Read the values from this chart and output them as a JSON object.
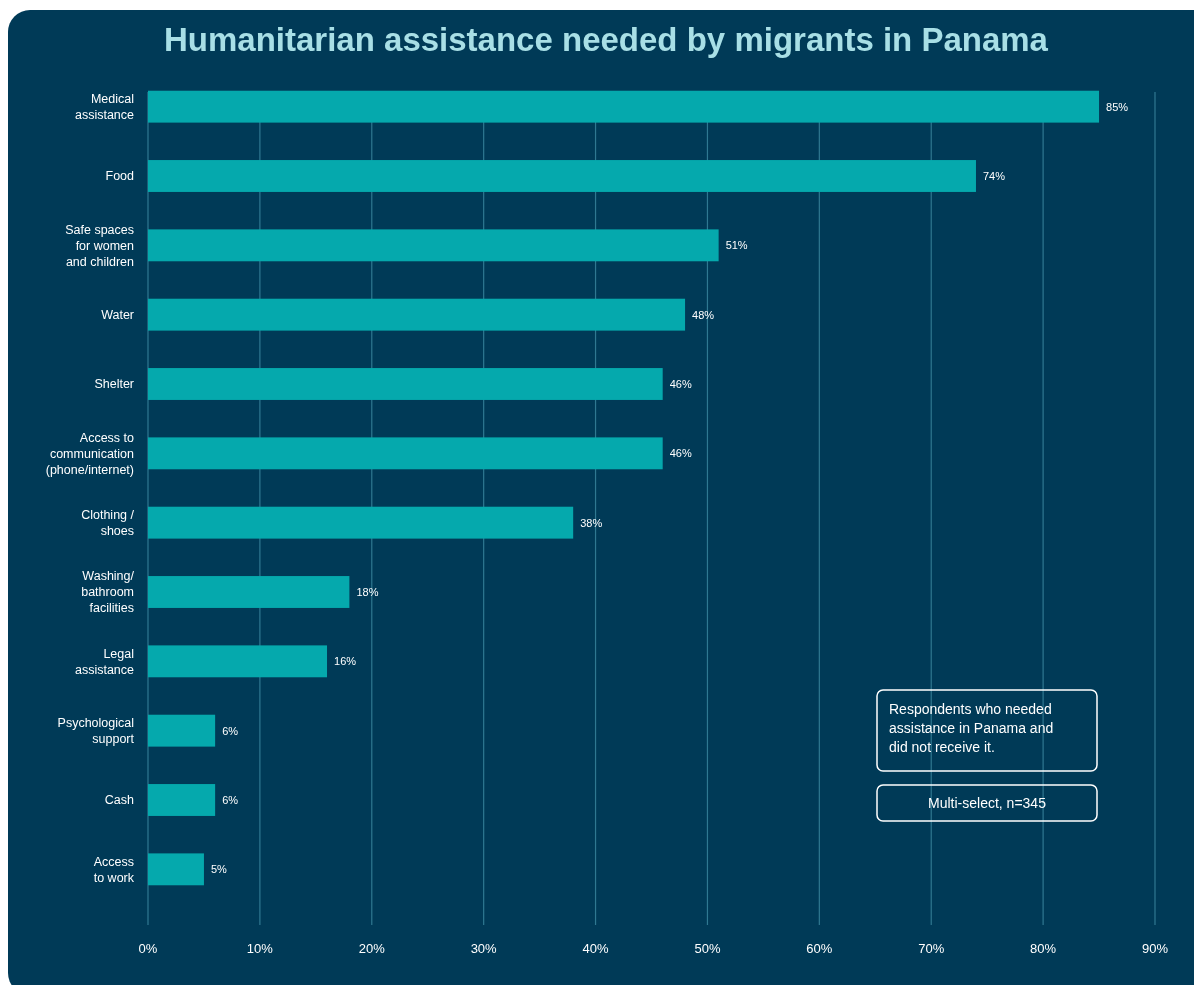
{
  "chart_data": {
    "type": "bar",
    "orientation": "horizontal",
    "title": "Humanitarian assistance needed by migrants in Panama",
    "categories": [
      "Medical\nassistance",
      "Food",
      "Safe spaces\nfor women\nand children",
      "Water",
      "Shelter",
      "Access to\ncommunication\n(phone/internet)",
      "Clothing /\nshoes",
      "Washing/\nbathroom\nfacilities",
      "Legal\nassistance",
      "Psychological\nsupport",
      "Cash",
      "Access\nto work"
    ],
    "values": [
      85,
      74,
      51,
      48,
      46,
      46,
      38,
      18,
      16,
      6,
      6,
      5
    ],
    "value_labels": [
      "85%",
      "74%",
      "51%",
      "48%",
      "46%",
      "46%",
      "38%",
      "18%",
      "16%",
      "6%",
      "6%",
      "5%"
    ],
    "color": "#05a9ad",
    "xlim": [
      0,
      90
    ],
    "xticks": [
      {
        "value": 0,
        "label": "0%"
      },
      {
        "value": 10,
        "label": "10%"
      },
      {
        "value": 20,
        "label": "20%"
      },
      {
        "value": 30,
        "label": "30%"
      },
      {
        "value": 40,
        "label": "40%"
      },
      {
        "value": 50,
        "label": "50%"
      },
      {
        "value": 60,
        "label": "60%"
      },
      {
        "value": 70,
        "label": "70%"
      },
      {
        "value": 80,
        "label": "80%"
      },
      {
        "value": 90,
        "label": "90%"
      }
    ],
    "grid": "x",
    "annotations": [
      "Respondents who needed\nassistance in Panama and\ndid not receive it.",
      "Multi-select, n=345"
    ]
  }
}
